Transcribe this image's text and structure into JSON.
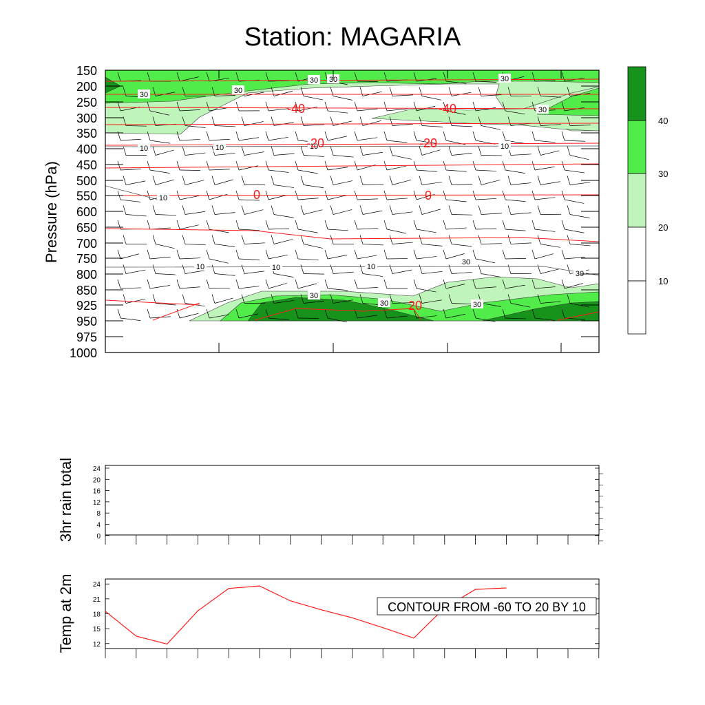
{
  "title": "Station: MAGARIA",
  "colors": {
    "green_10_20": "#ffffff",
    "green_20_30": "#bff5bb",
    "green_30_40": "#52ec4a",
    "green_40_plus": "#17921a",
    "temp_contour": "#ff1a1a",
    "wind_contour": "#555555",
    "barb": "#000000"
  },
  "chart_data": [
    {
      "type": "heatmap",
      "name_id": "upper-air-cross-section",
      "ylabel": "Pressure (hPa)",
      "y_ticks": [
        "150",
        "200",
        "250",
        "300",
        "350",
        "400",
        "450",
        "500",
        "550",
        "600",
        "650",
        "700",
        "750",
        "800",
        "850",
        "925",
        "950",
        "975",
        "1000"
      ],
      "grid": false,
      "wind_speed_contour_labels": [
        "10",
        "10",
        "10",
        "10",
        "10",
        "10",
        "10",
        "10",
        "30",
        "30",
        "30",
        "30",
        "30",
        "30",
        "30",
        "30",
        "30",
        "30",
        "30"
      ],
      "temperature_contour_labels": [
        "-40",
        "-40",
        "-20",
        "-20",
        "0",
        "0",
        "20"
      ],
      "wind_speed_fill_levels": [
        10,
        20,
        30,
        40
      ],
      "colorbar": {
        "labels": [
          "40",
          "30",
          "20",
          "10"
        ],
        "placement": "right"
      },
      "wind_barbs": "present"
    },
    {
      "type": "line",
      "name_id": "rain-panel",
      "ylabel": "3hr rain total",
      "y_ticks": [
        "24",
        "20",
        "16",
        "12",
        "8",
        "4",
        "0"
      ],
      "ylim": [
        0,
        24
      ],
      "series": [
        {
          "values": []
        }
      ]
    },
    {
      "type": "line",
      "name_id": "temp-panel",
      "ylabel": "Temp at 2m",
      "y_ticks": [
        "24",
        "21",
        "18",
        "15",
        "12"
      ],
      "ylim": [
        11,
        25
      ],
      "x": [
        0,
        1,
        2,
        3,
        4,
        5,
        6,
        7,
        8,
        9,
        10,
        11,
        12,
        13
      ],
      "series": [
        {
          "values": [
            18.5,
            13.5,
            11.9,
            18.6,
            23.1,
            23.6,
            20.6,
            18.8,
            17.2,
            15.2,
            13.1,
            19.2,
            22.9,
            23.2
          ]
        }
      ],
      "annotation": "CONTOUR FROM -60 TO 20 BY 10"
    }
  ]
}
